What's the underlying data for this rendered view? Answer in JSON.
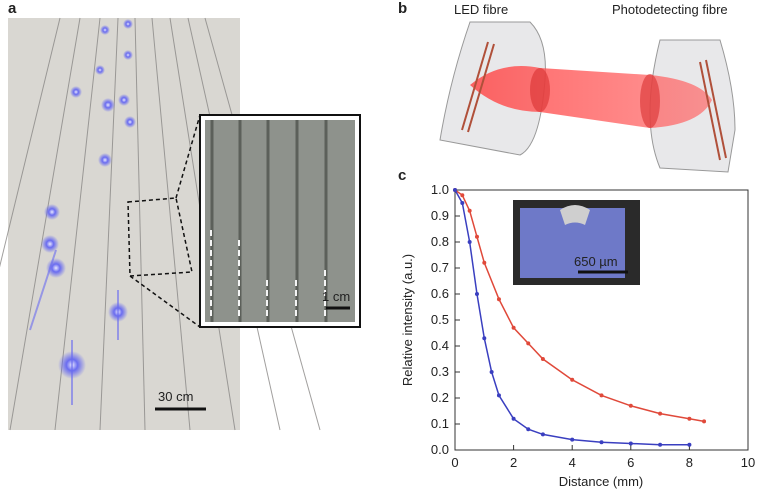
{
  "panels": {
    "a": {
      "label": "a",
      "scale_bar": "30 cm",
      "inset_scale_bar": "1 cm"
    },
    "b": {
      "label": "b",
      "left_label": "LED fibre",
      "right_label": "Photodetecting fibre"
    },
    "c": {
      "label": "c",
      "inset_scale_bar": "650 µm"
    }
  },
  "chart_data": {
    "type": "line",
    "xlabel": "Distance (mm)",
    "ylabel": "Relative intensity (a.u.)",
    "xlim": [
      0,
      10
    ],
    "xticks": [
      0,
      2,
      4,
      6,
      8,
      10
    ],
    "ylim": [
      0,
      1
    ],
    "yticks": [
      {
        "value": 0,
        "label": "0.0"
      },
      0.1,
      0.2,
      0.3,
      0.4,
      0.5,
      0.6,
      0.7,
      0.8,
      0.9,
      {
        "value": 1,
        "label": "1.0"
      }
    ],
    "series": [
      {
        "color": "#e0493a",
        "x": [
          0,
          0.25,
          0.5,
          0.75,
          1,
          1.5,
          2,
          2.5,
          3,
          4,
          5,
          6,
          7,
          8,
          8.5
        ],
        "values": [
          1.0,
          0.98,
          0.92,
          0.82,
          0.72,
          0.58,
          0.47,
          0.41,
          0.35,
          0.27,
          0.21,
          0.17,
          0.14,
          0.12,
          0.11
        ]
      },
      {
        "color": "#3a3fc0",
        "x": [
          0,
          0.25,
          0.5,
          0.75,
          1,
          1.25,
          1.5,
          2,
          2.5,
          3,
          4,
          5,
          6,
          7,
          8
        ],
        "values": [
          1.0,
          0.95,
          0.8,
          0.6,
          0.43,
          0.3,
          0.21,
          0.12,
          0.08,
          0.06,
          0.04,
          0.03,
          0.025,
          0.02,
          0.02
        ]
      }
    ]
  }
}
